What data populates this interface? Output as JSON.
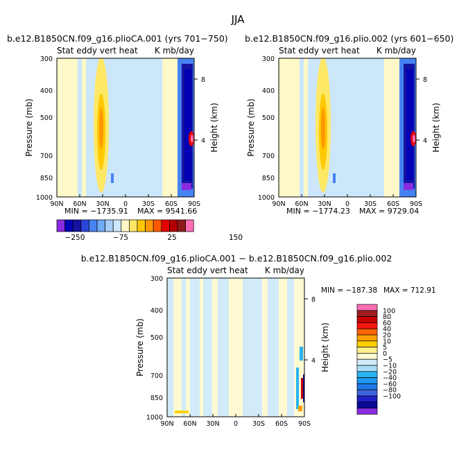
{
  "page_title": "JJA",
  "chart_data": [
    {
      "id": "panel1",
      "type": "heatmap",
      "title": "b.e12.B1850CN.f09_g16.plioCA.001 (yrs 701−750)",
      "subtitle_left": "Stat eddy vert heat",
      "subtitle_right": "K mb/day",
      "ylabel": "Pressure (mb)",
      "ylabel_right": "Height (km)",
      "x_ticks": [
        "90N",
        "60N",
        "30N",
        "0",
        "30S",
        "60S",
        "90S"
      ],
      "y_ticks": [
        "300",
        "400",
        "500",
        "700",
        "850",
        "1000"
      ],
      "y_ticks_right": [
        "8",
        "4"
      ],
      "min_label": "MIN = −1735.91",
      "max_label": "MAX = 9541.66"
    },
    {
      "id": "panel2",
      "type": "heatmap",
      "title": "b.e12.B1850CN.f09_g16.plio.002 (yrs 601−650)",
      "subtitle_left": "Stat eddy vert heat",
      "subtitle_right": "K mb/day",
      "ylabel": "Pressure (mb)",
      "ylabel_right": "Height (km)",
      "x_ticks": [
        "90N",
        "60N",
        "30N",
        "0",
        "30S",
        "60S",
        "90S"
      ],
      "y_ticks": [
        "300",
        "400",
        "500",
        "700",
        "850",
        "1000"
      ],
      "y_ticks_right": [
        "8",
        "4"
      ],
      "min_label": "MIN = −1774.23",
      "max_label": "MAX = 9729.04"
    },
    {
      "id": "panel3",
      "type": "heatmap",
      "title": "b.e12.B1850CN.f09_g16.plioCA.001 − b.e12.B1850CN.f09_g16.plio.002",
      "subtitle_left": "Stat eddy vert heat",
      "subtitle_right": "K mb/day",
      "ylabel": "Pressure (mb)",
      "ylabel_right": "Height (km)",
      "x_ticks": [
        "90N",
        "60N",
        "30N",
        "0",
        "30S",
        "60S",
        "90S"
      ],
      "y_ticks": [
        "300",
        "400",
        "500",
        "700",
        "850",
        "1000"
      ],
      "y_ticks_right": [
        "8",
        "4"
      ],
      "min_label": "MIN = −187.38",
      "max_label": "MAX = 712.91"
    }
  ],
  "colorbar_top": {
    "colors": [
      "#8a2be2",
      "#0000b4",
      "#1414a0",
      "#2a46d8",
      "#4682f0",
      "#6eaaf5",
      "#a6ccf7",
      "#cce6fa",
      "#fff8c8",
      "#ffe866",
      "#ffc800",
      "#ff9600",
      "#ff5a00",
      "#e60000",
      "#b40000",
      "#8c1a1a",
      "#ff6eb4"
    ],
    "labels": [
      "−250",
      "−75",
      "25",
      "150"
    ]
  },
  "colorbar_diff": {
    "colors": [
      "#ff6eb4",
      "#a01e1e",
      "#c80000",
      "#ff1414",
      "#ff6400",
      "#ffa000",
      "#ffd200",
      "#fff08c",
      "#fffad2",
      "#d2ebfa",
      "#aadcfa",
      "#28b4f0",
      "#1e96f0",
      "#1e78e6",
      "#3c64dc",
      "#1e1ec8",
      "#0a0a96",
      "#8a2be2"
    ],
    "labels": [
      "100",
      "80",
      "60",
      "40",
      "20",
      "10",
      "5",
      "0",
      "−5",
      "−10",
      "−20",
      "−40",
      "−60",
      "−80",
      "−100"
    ]
  }
}
